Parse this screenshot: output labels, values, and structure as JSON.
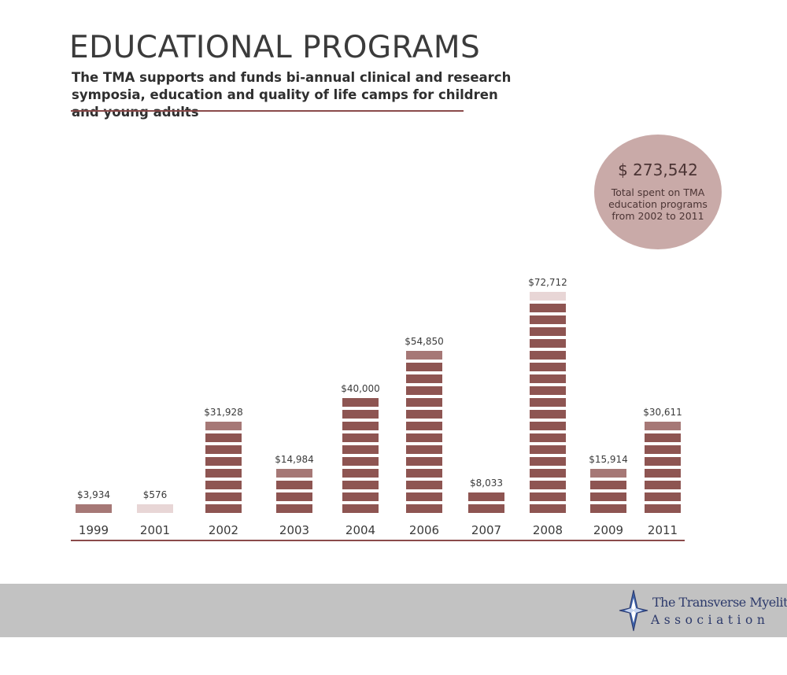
{
  "header": {
    "title": "EDUCATIONAL PROGRAMS",
    "subtitle": "The TMA supports and funds bi-annual clinical and research symposia, education and quality of life camps for children and young adults"
  },
  "total": {
    "value": "$ 273,542",
    "caption": "Total spent on TMA education programs from 2002 to 2011"
  },
  "logo": {
    "line1": "The Transverse Myelitis",
    "line2": "Association"
  },
  "colors": {
    "bar": "#8e5552",
    "bar_light": "#a67876",
    "bar_pale": "#e8d6d6",
    "axis": "#8a4a4a",
    "circle": "#c9aaa8",
    "footer": "#c2c2c2"
  },
  "chart_data": {
    "type": "bar",
    "categories": [
      "1999",
      "2001",
      "2002",
      "2003",
      "2004",
      "2006",
      "2007",
      "2008",
      "2009",
      "2011"
    ],
    "values": [
      3934,
      576,
      31928,
      14984,
      40000,
      54850,
      8033,
      72712,
      15914,
      30611
    ],
    "value_labels": [
      "$3,934",
      "$576",
      "$31,928",
      "$14,984",
      "$40,000",
      "$54,850",
      "$8,033",
      "$72,712",
      "$15,914",
      "$30,611"
    ],
    "title": "",
    "xlabel": "",
    "ylabel": "",
    "unit_per_segment": 4000,
    "grid": false
  }
}
